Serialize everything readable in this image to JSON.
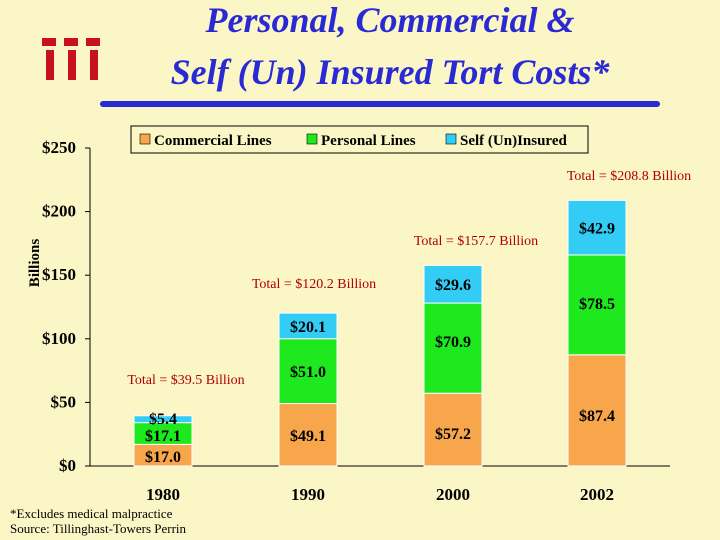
{
  "header": {
    "title_line1": "Personal, Commercial &",
    "title_line2": "Self (Un) Insured Tort Costs*",
    "logo_text": "iii"
  },
  "footer": {
    "footnote": "*Excludes medical malpractice",
    "source": "Source: Tillinghast-Towers Perrin"
  },
  "colors": {
    "title": "#2a2ad4",
    "commercial": "#f8a64c",
    "personal": "#1ee81e",
    "self": "#33ccf5",
    "total_label": "#b00000",
    "logo": "#c8101e"
  },
  "chart_data": {
    "type": "bar",
    "stacked": true,
    "ylabel": "Billions",
    "ylim": [
      0,
      250
    ],
    "yticks": [
      0,
      50,
      100,
      150,
      200,
      250
    ],
    "ytick_labels": [
      "$0",
      "$50",
      "$100",
      "$150",
      "$200",
      "$250"
    ],
    "categories": [
      "1980",
      "1990",
      "2000",
      "2002"
    ],
    "legend_position": "top",
    "series": [
      {
        "name": "Commercial Lines",
        "color_key": "commercial",
        "values": [
          17.0,
          49.1,
          57.2,
          87.4
        ],
        "labels": [
          "$17.0",
          "$49.1",
          "$57.2",
          "$87.4"
        ]
      },
      {
        "name": "Personal Lines",
        "color_key": "personal",
        "values": [
          17.1,
          51.0,
          70.9,
          78.5
        ],
        "labels": [
          "$17.1",
          "$51.0",
          "$70.9",
          "$78.5"
        ]
      },
      {
        "name": "Self (Un)Insured",
        "color_key": "self",
        "values": [
          5.4,
          20.1,
          29.6,
          42.9
        ],
        "labels": [
          "$5.4",
          "$20.1",
          "$29.6",
          "$42.9"
        ]
      }
    ],
    "totals": [
      "Total = $39.5 Billion",
      "Total = $120.2 Billion",
      "Total = $157.7 Billion",
      "Total = $208.8 Billion"
    ]
  }
}
